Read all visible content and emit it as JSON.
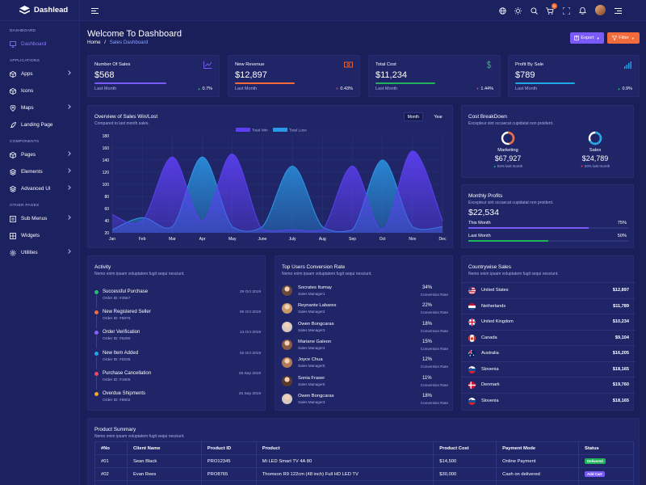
{
  "brand": {
    "name": "Dashlead"
  },
  "sidebar": {
    "sections": [
      {
        "title": "DASHBOARD",
        "items": [
          {
            "label": "Dashboard",
            "icon": "monitor-icon",
            "active": true
          }
        ]
      },
      {
        "title": "APPLICATIONS",
        "items": [
          {
            "label": "Apps",
            "icon": "cube-icon",
            "chevron": true
          },
          {
            "label": "Icons",
            "icon": "package-icon"
          },
          {
            "label": "Maps",
            "icon": "map-pin-icon",
            "chevron": true
          },
          {
            "label": "Landing Page",
            "icon": "rocket-icon"
          }
        ]
      },
      {
        "title": "COMPONENTS",
        "items": [
          {
            "label": "Pages",
            "icon": "box-icon",
            "chevron": true
          },
          {
            "label": "Elements",
            "icon": "layers-icon",
            "chevron": true
          },
          {
            "label": "Advanced UI",
            "icon": "stack-icon",
            "chevron": true
          }
        ]
      },
      {
        "title": "OTHER PAGES",
        "items": [
          {
            "label": "Sub Menus",
            "icon": "list-icon",
            "chevron": true
          },
          {
            "label": "Widgets",
            "icon": "grid-icon"
          },
          {
            "label": "Utilities",
            "icon": "settings-icon",
            "chevron": true
          }
        ]
      }
    ]
  },
  "topbar": {
    "cart_badge": "5"
  },
  "header": {
    "title": "Welcome To Dashboard",
    "breadcrumb_home": "Home",
    "breadcrumb_sep": "/",
    "breadcrumb_current": "Sales Dashboard",
    "export_label": "Export",
    "filter_label": "Filter"
  },
  "stats": [
    {
      "label": "Number Of Sales",
      "value": "$568",
      "last": "Last Month",
      "pct": "0.7%",
      "dir": "up",
      "color": "#7a5af8",
      "fill": 0.6,
      "icon": "line-chart-icon"
    },
    {
      "label": "New Revenue",
      "value": "$12,897",
      "last": "Last Month",
      "pct": "0.43%",
      "dir": "down",
      "color": "#f26b3a",
      "fill": 0.5,
      "icon": "money-icon"
    },
    {
      "label": "Total Cost",
      "value": "$11,234",
      "last": "Last Month",
      "pct": "1.44%",
      "dir": "down",
      "color": "#21b35c",
      "fill": 0.5,
      "icon": "dollar-icon"
    },
    {
      "label": "Profit By Sale",
      "value": "$789",
      "last": "Last Month",
      "pct": "0.9%",
      "dir": "up",
      "color": "#1fa8e8",
      "fill": 0.5,
      "icon": "bar-signal-icon"
    }
  ],
  "colors": {
    "up": "#21c073",
    "down": "#f5426c",
    "export": "#7a5af8",
    "filter": "#f26b3a"
  },
  "sales_chart": {
    "title": "Overview of Sales Win/Lost",
    "subtitle": "Compared to last month sales.",
    "toggle": [
      "Month",
      "Year"
    ]
  },
  "chart_data": {
    "type": "area",
    "categories": [
      "Jan",
      "Feb",
      "Mar",
      "Apr",
      "May",
      "June",
      "July",
      "Aug",
      "Sep",
      "Oct",
      "Nov",
      "Dec"
    ],
    "series": [
      {
        "name": "Total Win",
        "color": "#5b3ff0",
        "values": [
          50,
          40,
          145,
          40,
          150,
          25,
          25,
          25,
          130,
          25,
          155,
          40
        ]
      },
      {
        "name": "Total Loss",
        "color": "#2a98e6",
        "values": [
          25,
          45,
          30,
          145,
          30,
          30,
          130,
          30,
          25,
          140,
          30,
          30
        ]
      }
    ],
    "yticks": [
      20,
      40,
      60,
      80,
      100,
      120,
      140,
      160,
      180
    ],
    "ylim": [
      20,
      180
    ],
    "legend": "top-center"
  },
  "cost": {
    "title": "Cost BreakDown",
    "subtitle": "Excepteur sint occaecat cupidatat non proident.",
    "items": [
      {
        "label": "Marketing",
        "value": "$67,927",
        "sub": "54% last month",
        "dir": "up",
        "color": "#f26b3a",
        "ratio": 0.54
      },
      {
        "label": "Sales",
        "value": "$24,789",
        "sub": "33% last month",
        "dir": "down",
        "color": "#1fa8e8",
        "ratio": 0.33
      }
    ]
  },
  "profits": {
    "title": "Monthly Profits",
    "subtitle": "Excepteur sint occaecat cupidatat non proident.",
    "value": "$22,534",
    "rows": [
      {
        "label": "This Month",
        "pct": "75%",
        "fill": 0.75,
        "color": "#7a5af8"
      },
      {
        "label": "Last Month",
        "pct": "50%",
        "fill": 0.5,
        "color": "#21b35c"
      }
    ]
  },
  "activity": {
    "title": "Activity",
    "subtitle": "Nemo enim ipsam voluptatem fugit sequi nesciunt.",
    "items": [
      {
        "title": "Successful Purchase",
        "sub": "Order ID: #4567",
        "date": "29 Oct 2019",
        "color": "#21c073"
      },
      {
        "title": "New Registered Seller",
        "sub": "Order ID: #5976",
        "date": "05 Oct 2019",
        "color": "#f26b3a"
      },
      {
        "title": "Order Verification",
        "sub": "Order ID: #6290",
        "date": "14 Oct 2019",
        "color": "#8c5cf7"
      },
      {
        "title": "New Item Added",
        "sub": "Order ID: #0235",
        "date": "02 Oct 2019",
        "color": "#1fa8e8"
      },
      {
        "title": "Purchase Cancellation",
        "sub": "Order ID: #1905",
        "date": "28 Sep 2019",
        "color": "#f5426c"
      },
      {
        "title": "Overdue Shipments",
        "sub": "Order ID: #8902",
        "date": "25 Sep 2019",
        "color": "#f5a623"
      }
    ]
  },
  "users": {
    "title": "Top Users Conversion Rate",
    "subtitle": "Nemo enim ipsam voluptatem fugit sequi nesciunt.",
    "rows": [
      {
        "name": "Socrates Itumay",
        "role": "Sales Manager1",
        "pct": "34%",
        "pct_label": "Conversion Rate",
        "avatar": "#6b4a3a"
      },
      {
        "name": "Reynante Labares",
        "role": "Sales Manager2",
        "pct": "22%",
        "pct_label": "Conversion Rate",
        "avatar": "#c89a6a"
      },
      {
        "name": "Owen Bongcaras",
        "role": "Sales Manager3",
        "pct": "18%",
        "pct_label": "Conversion Rate",
        "avatar": "#d9c8c0"
      },
      {
        "name": "Mariane Galeon",
        "role": "Sales Manager4",
        "pct": "15%",
        "pct_label": "Conversion Rate",
        "avatar": "#8a5a42"
      },
      {
        "name": "Joyce Chua",
        "role": "Sales Manager5",
        "pct": "12%",
        "pct_label": "Conversion Rate",
        "avatar": "#b07a52"
      },
      {
        "name": "Sonia Fraser",
        "role": "Sales Manager5",
        "pct": "11%",
        "pct_label": "Conversion Rate",
        "avatar": "#5a3a2a"
      },
      {
        "name": "Owen Bongcaras",
        "role": "Sales Manager3",
        "pct": "18%",
        "pct_label": "Conversion Rate",
        "avatar": "#d9c8c0"
      }
    ]
  },
  "countries": {
    "title": "Countrywise Sales",
    "subtitle": "Nemo enim ipsam voluptatem fugit sequi nesciunt.",
    "rows": [
      {
        "name": "United States",
        "value": "$12,897",
        "flag": "us"
      },
      {
        "name": "Netherlands",
        "value": "$11,789",
        "flag": "nl"
      },
      {
        "name": "United Kingdom",
        "value": "$10,234",
        "flag": "uk"
      },
      {
        "name": "Canada",
        "value": "$9,104",
        "flag": "ca"
      },
      {
        "name": "Australia",
        "value": "$16,205",
        "flag": "au"
      },
      {
        "name": "Slovenia",
        "value": "$18,165",
        "flag": "si"
      },
      {
        "name": "Denmark",
        "value": "$19,760",
        "flag": "dk"
      },
      {
        "name": "Slovenia",
        "value": "$18,165",
        "flag": "si"
      }
    ]
  },
  "products": {
    "title": "Product Summary",
    "subtitle": "Nemo enim ipsam voluptatem fugit sequi nesciunt.",
    "headers": [
      "#No",
      "Client Name",
      "Product ID",
      "Product",
      "Product Cost",
      "Payment Mode",
      "Status"
    ],
    "rows": [
      {
        "no": "#01",
        "client": "Sean Black",
        "pid": "PRO12345",
        "product": "Mi LED Smart TV 4A 80",
        "cost": "$14,500",
        "mode": "Online Payment",
        "status": "Delivered",
        "status_color": "#21b35c"
      },
      {
        "no": "#02",
        "client": "Evan Rees",
        "pid": "PRO8765",
        "product": "Thomson R9 122cm (48 inch) Full HD LED TV",
        "cost": "$30,000",
        "mode": "Cash on delivered",
        "status": "Add Cart",
        "status_color": "#7a5af8"
      },
      {
        "no": "#03",
        "client": "",
        "pid": "",
        "product": "",
        "cost": "",
        "mode": "",
        "status": "",
        "status_color": "#f26b3a"
      }
    ]
  }
}
